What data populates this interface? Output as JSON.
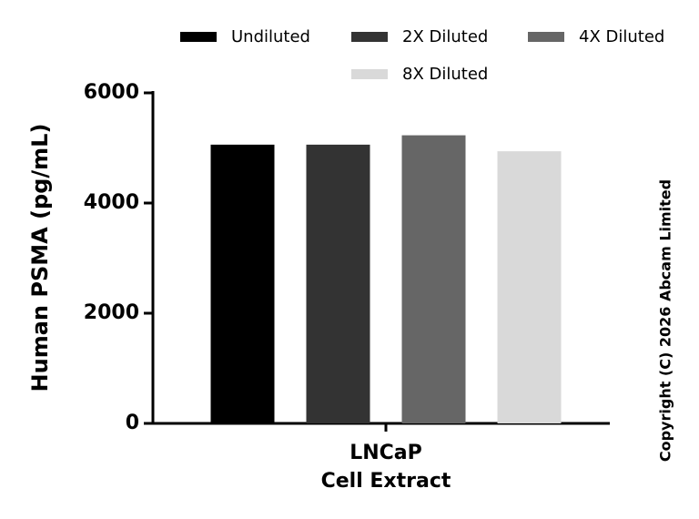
{
  "chart_data": {
    "type": "bar",
    "y_label": "Human PSMA (pg/mL)",
    "categories": [
      "LNCaP\nCell Extract"
    ],
    "series": [
      {
        "name": "Undiluted",
        "color": "#000000",
        "values": [
          5060
        ]
      },
      {
        "name": "2X Diluted",
        "color": "#333333",
        "values": [
          5060
        ]
      },
      {
        "name": "4X Diluted",
        "color": "#666666",
        "values": [
          5230
        ]
      },
      {
        "name": "8X Diluted",
        "color": "#d9d9d9",
        "values": [
          4940
        ]
      }
    ],
    "ylim": [
      0,
      6000
    ],
    "yticks": [
      0,
      2000,
      4000,
      6000
    ],
    "copyright": "Copyright (C) 2026 Abcam Limited"
  }
}
